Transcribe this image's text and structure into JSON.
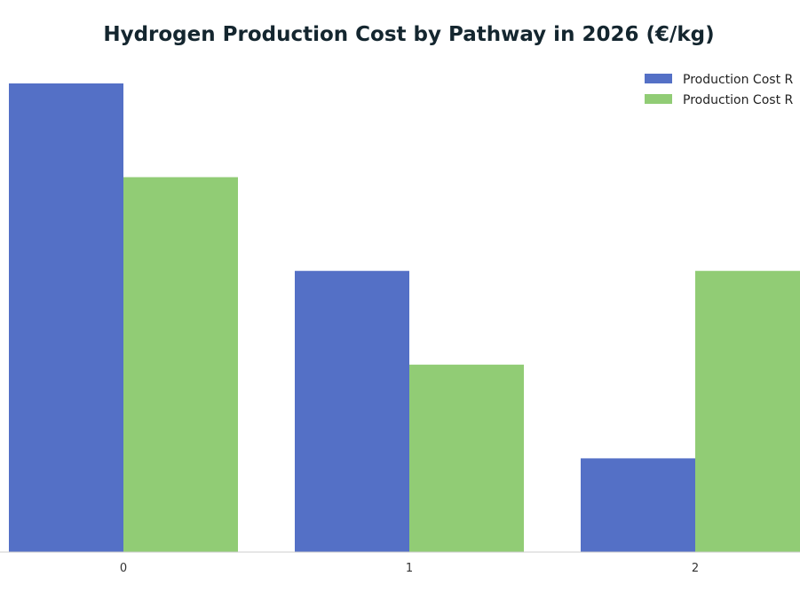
{
  "chart_data": {
    "type": "bar",
    "title": "Hydrogen Production Cost by Pathway in 2026 (€/kg)",
    "xlabel": "",
    "ylabel": "",
    "categories": [
      "0",
      "1",
      "2"
    ],
    "series": [
      {
        "name": "Production Cost R",
        "color": "#5470c6",
        "values": [
          5,
          3,
          1
        ]
      },
      {
        "name": "Production Cost R",
        "color": "#91cc75",
        "values": [
          4,
          2,
          3
        ]
      }
    ],
    "ylim": [
      0,
      5
    ],
    "grid": false,
    "legend_position": "top-right"
  }
}
